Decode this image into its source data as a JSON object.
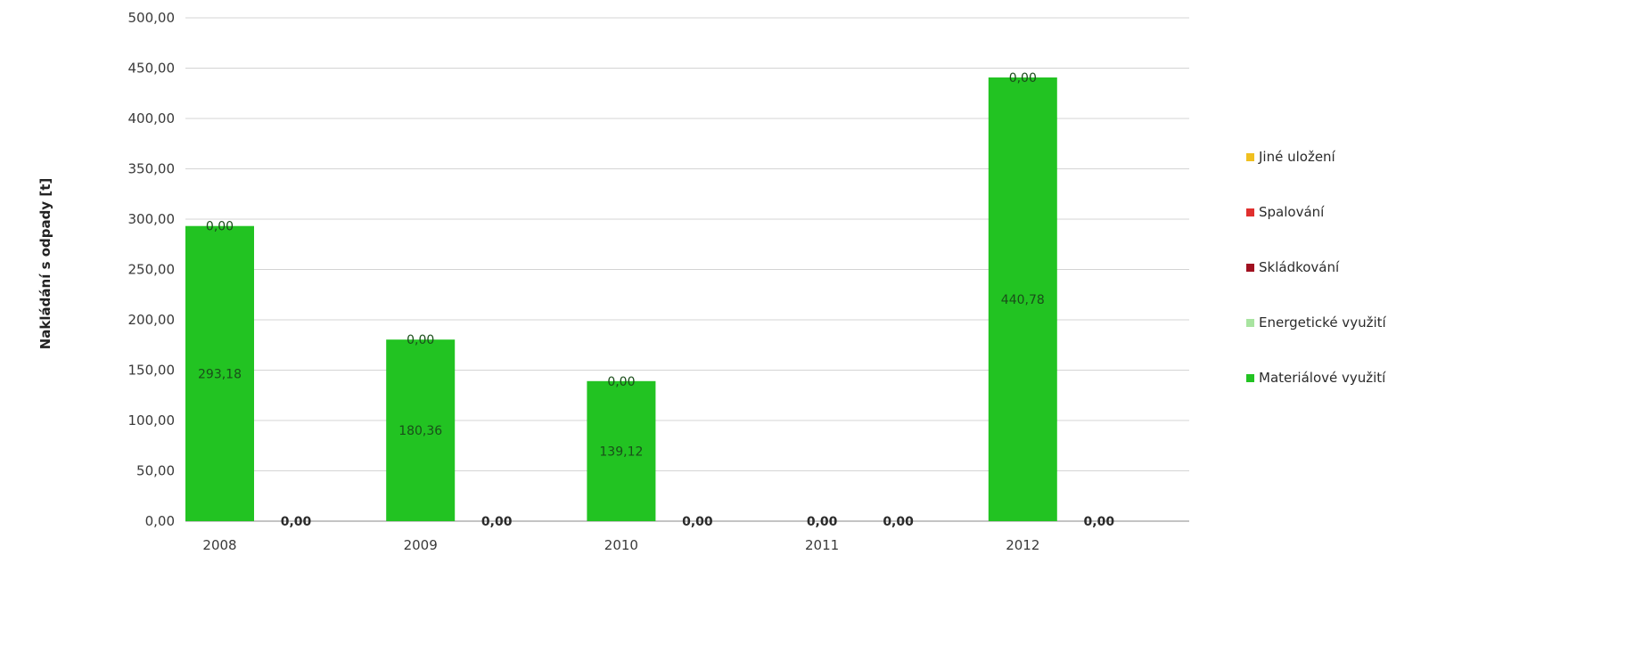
{
  "chart_data": {
    "type": "bar",
    "ylabel": "Nakládání s odpady [t]",
    "ylim": [
      0,
      500
    ],
    "y_ticks": [
      "0,00",
      "50,00",
      "100,00",
      "150,00",
      "200,00",
      "250,00",
      "300,00",
      "350,00",
      "400,00",
      "450,00",
      "500,00"
    ],
    "y_tick_values": [
      0,
      50,
      100,
      150,
      200,
      250,
      300,
      350,
      400,
      450,
      500
    ],
    "categories": [
      "2008",
      "2009",
      "2010",
      "2011",
      "2012"
    ],
    "grid": true,
    "legend_position": "right",
    "series": [
      {
        "name": "Materiálové využití",
        "color": "#22c322",
        "values": [
          293.18,
          180.36,
          139.12,
          0,
          440.78
        ],
        "labels": [
          "293,18",
          "180,36",
          "139,12",
          "0,00",
          "440,78"
        ]
      },
      {
        "name": "Energetické využití",
        "color": "#a8e4a0",
        "values": [
          0,
          0,
          0,
          0,
          0
        ],
        "labels": [
          "0,00",
          "0,00",
          "0,00",
          "0,00",
          "0,00"
        ]
      },
      {
        "name": "Skládkování",
        "color": "#a01020",
        "values": [
          0,
          0,
          0,
          0,
          0
        ],
        "labels": [
          "0,00",
          "0,00",
          "0,00",
          "0,00",
          "0,00"
        ]
      },
      {
        "name": "Spalování",
        "color": "#e0302e",
        "values": [
          0,
          0,
          0,
          0,
          0
        ],
        "labels": [
          "0,00",
          "0,00",
          "0,00",
          "0,00",
          "0,00"
        ]
      },
      {
        "name": "Jiné uložení",
        "color": "#f0c020",
        "values": [
          0,
          0,
          0,
          0,
          0
        ],
        "labels": [
          "0,00",
          "0,00",
          "0,00",
          "0,00",
          "0,00"
        ]
      }
    ],
    "legend": [
      "Jiné uložení",
      "Spalování",
      "Skládkování",
      "Energetické využití",
      "Materiálové využití"
    ]
  }
}
